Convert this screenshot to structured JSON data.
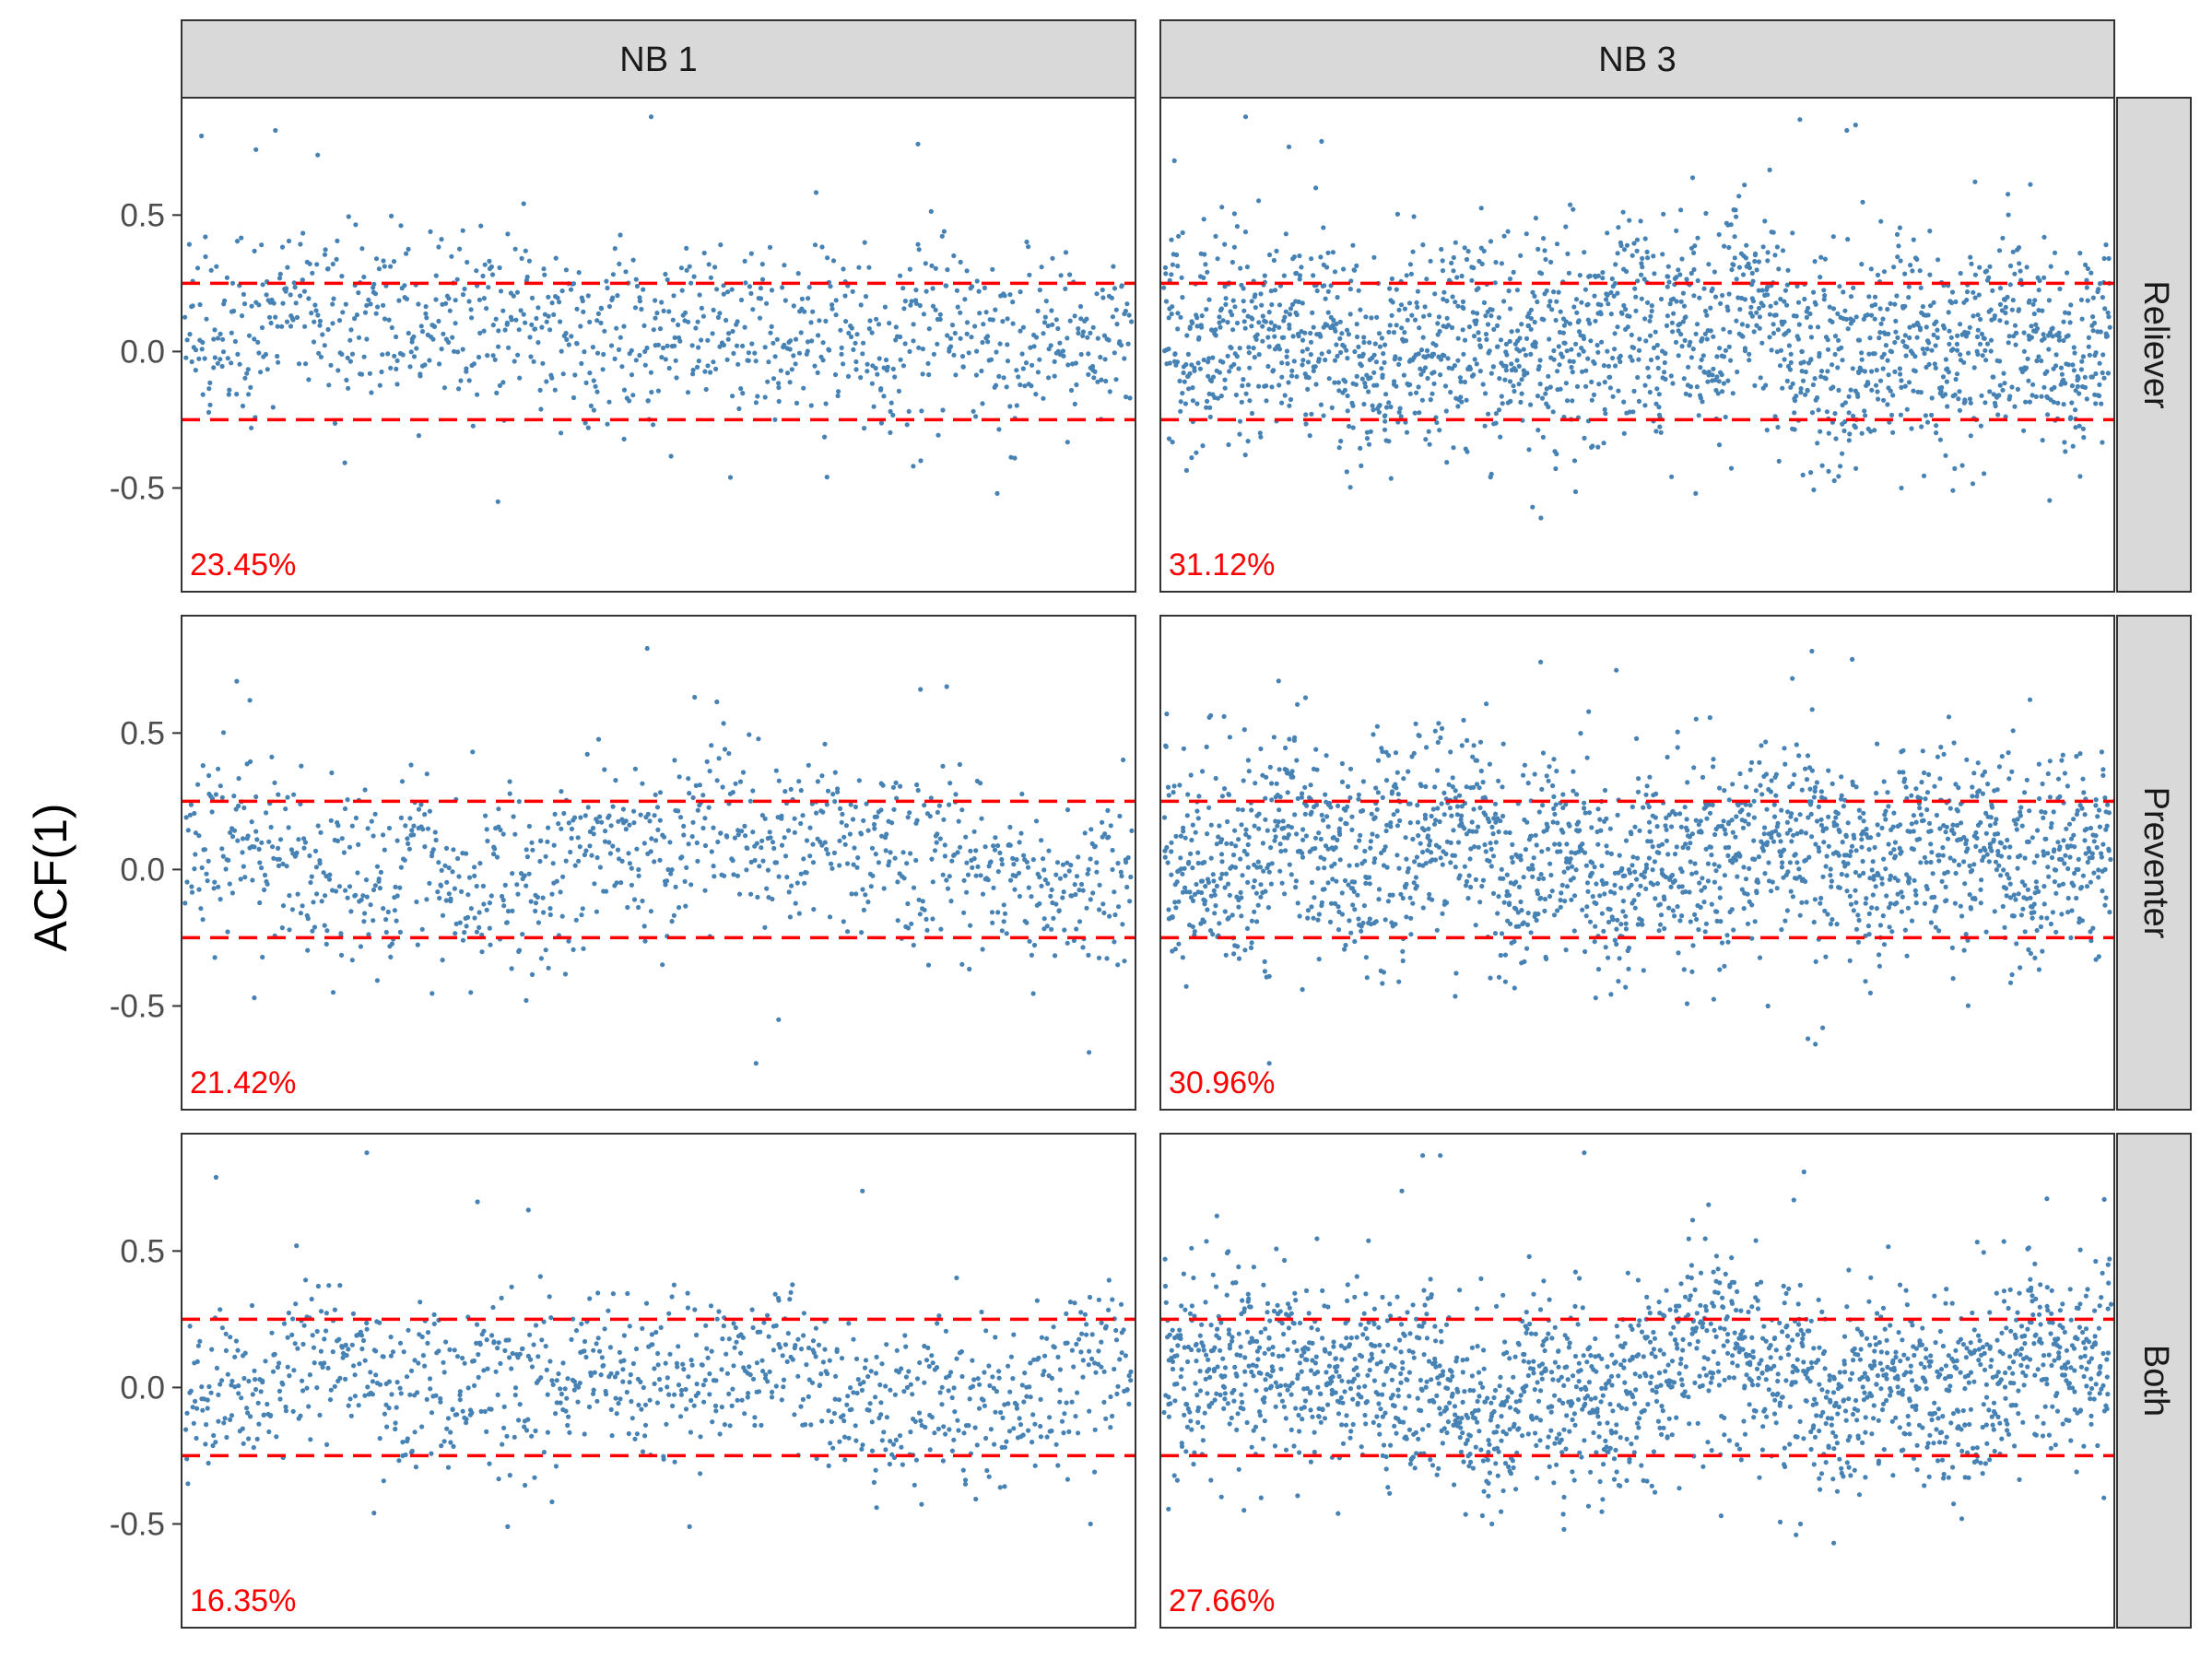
{
  "chart_data": {
    "type": "scatter",
    "facet_columns": [
      "NB 1",
      "NB 3"
    ],
    "facet_rows": [
      "Reliever",
      "Preventer",
      "Both"
    ],
    "ylabel": "ACF(1)",
    "xlabel": "",
    "y_ticks": [
      {
        "value": 0.5,
        "label": "0.5"
      },
      {
        "value": 0.0,
        "label": "0.0"
      },
      {
        "value": -0.5,
        "label": "-0.5"
      }
    ],
    "ylim": [
      -0.88,
      0.93
    ],
    "threshold_lines": [
      0.25,
      -0.25
    ],
    "colors": {
      "points": "#4682b4",
      "threshold": "#ff0000",
      "percent_label": "#ff0000",
      "strip_fill": "#d9d9d9",
      "panel_border": "#333333"
    },
    "grid": false,
    "legend": "none",
    "panels": [
      {
        "col": "NB 1",
        "row": "Reliever",
        "percent_label": "23.45%",
        "n_points": 980,
        "y_mean": 0.06,
        "y_sd": 0.18,
        "outliers_above": [
          0.86,
          0.81,
          0.79,
          0.76,
          0.74,
          0.72
        ],
        "outliers_below": [
          -0.55,
          -0.52,
          -0.46,
          -0.42,
          -0.4
        ]
      },
      {
        "col": "NB 3",
        "row": "Reliever",
        "percent_label": "31.12%",
        "n_points": 1900,
        "y_mean": 0.05,
        "y_sd": 0.21,
        "outliers_above": [
          0.86,
          0.85,
          0.83,
          0.81,
          0.77,
          0.75
        ],
        "outliers_below": [
          -0.61,
          -0.57,
          -0.52,
          -0.5,
          -0.46
        ]
      },
      {
        "col": "NB 1",
        "row": "Preventer",
        "percent_label": "21.42%",
        "n_points": 980,
        "y_mean": 0.03,
        "y_sd": 0.18,
        "outliers_above": [
          0.81,
          0.69,
          0.67,
          0.66,
          0.62
        ],
        "outliers_below": [
          -0.71,
          -0.67,
          -0.55,
          -0.48,
          -0.47
        ]
      },
      {
        "col": "NB 3",
        "row": "Preventer",
        "percent_label": "30.96%",
        "n_points": 1900,
        "y_mean": 0.03,
        "y_sd": 0.21,
        "outliers_above": [
          0.8,
          0.77,
          0.76,
          0.73,
          0.7
        ],
        "outliers_below": [
          -0.71,
          -0.64,
          -0.62,
          -0.58,
          -0.5
        ]
      },
      {
        "col": "NB 1",
        "row": "Both",
        "percent_label": "16.35%",
        "n_points": 980,
        "y_mean": 0.04,
        "y_sd": 0.16,
        "outliers_above": [
          0.86,
          0.77,
          0.72,
          0.68,
          0.65
        ],
        "outliers_below": [
          -0.51,
          -0.51,
          -0.5,
          -0.46,
          -0.44
        ]
      },
      {
        "col": "NB 3",
        "row": "Both",
        "percent_label": "27.66%",
        "n_points": 1900,
        "y_mean": 0.04,
        "y_sd": 0.19,
        "outliers_above": [
          0.86,
          0.85,
          0.85,
          0.79,
          0.72
        ],
        "outliers_below": [
          -0.57,
          -0.54,
          -0.52,
          -0.5,
          -0.47
        ]
      }
    ]
  }
}
